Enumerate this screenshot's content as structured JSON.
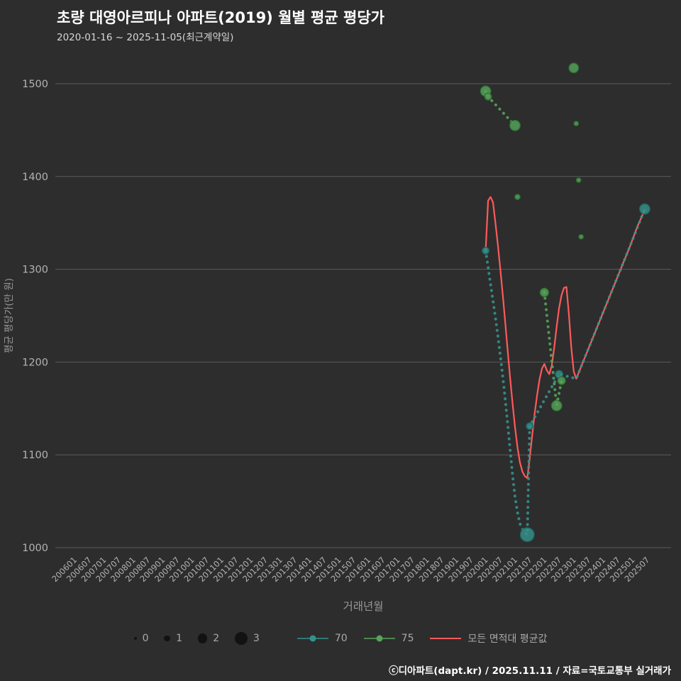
{
  "page": {
    "title": "초량 대영아르피나 아파트(2019) 월별 평균 평당가",
    "subtitle": "2020-01-16 ~ 2025-11-05(최근계약일)",
    "footer": "ⓒ디아파트(dapt.kr) / 2025.11.11 / 자료=국토교통부 실거래가"
  },
  "colors": {
    "background": "#2d2d2d",
    "grid": "#5c5c5c",
    "tick_text": "#b3b3b3",
    "axis_title": "#969696",
    "legend_text": "#a9a9a9",
    "size_dot": "#121212",
    "series70": "#35918c",
    "series75": "#57a35a",
    "avg_line": "#ff5a5a"
  },
  "chart_data": {
    "type": "scatter",
    "title": "초량 대영아르피나 아파트(2019) 월별 평균 평당가",
    "subtitle": "2020-01-16 ~ 2025-11-05(최근계약일)",
    "xlabel": "거래년월",
    "ylabel": "평균 평당가(만 원)",
    "yticks": [
      1000,
      1100,
      1200,
      1300,
      1400,
      1500
    ],
    "ylim": [
      990,
      1545
    ],
    "grid": "horizontal-only",
    "legend_position": "bottom",
    "xticks": [
      "200601",
      "200607",
      "200701",
      "200707",
      "200801",
      "200807",
      "200901",
      "200907",
      "201001",
      "201007",
      "201101",
      "201107",
      "201201",
      "201207",
      "201301",
      "201307",
      "201401",
      "201407",
      "201501",
      "201507",
      "201601",
      "201607",
      "201701",
      "201707",
      "201801",
      "201807",
      "201901",
      "201907",
      "202001",
      "202007",
      "202101",
      "202107",
      "202201",
      "202207",
      "202301",
      "202307",
      "202401",
      "202407",
      "202501",
      "202507"
    ],
    "size_legend": [
      0,
      1,
      2,
      3
    ],
    "series": [
      {
        "name": "70",
        "color": "#35918c",
        "edge": "#1d655f",
        "points": [
          [
            "202001",
            1320,
            1
          ],
          [
            "202106",
            1014,
            3
          ],
          [
            "202107",
            1131,
            1
          ],
          [
            "202207",
            1187,
            1.2
          ],
          [
            "202506",
            1365,
            2
          ]
        ],
        "trails": [
          [
            [
              "202001",
              1320
            ],
            [
              "202002",
              1302
            ],
            [
              "202003",
              1284
            ],
            [
              "202004",
              1266
            ],
            [
              "202005",
              1248
            ],
            [
              "202006",
              1228
            ],
            [
              "202007",
              1207
            ],
            [
              "202008",
              1184
            ],
            [
              "202009",
              1160
            ],
            [
              "202010",
              1134
            ],
            [
              "202011",
              1106
            ],
            [
              "202012",
              1078
            ],
            [
              "202101",
              1055
            ],
            [
              "202102",
              1038
            ],
            [
              "202103",
              1026
            ],
            [
              "202104",
              1020
            ],
            [
              "202105",
              1016
            ],
            [
              "202106",
              1014
            ],
            [
              "202107",
              1131
            ],
            [
              "202207",
              1187
            ],
            [
              "202302",
              1182
            ],
            [
              "202312",
              1247
            ],
            [
              "202412",
              1325
            ],
            [
              "202506",
              1365
            ]
          ]
        ]
      },
      {
        "name": "75",
        "color": "#57a35a",
        "edge": "#2e7033",
        "points": [
          [
            "202001",
            1492,
            2
          ],
          [
            "202002",
            1486,
            1
          ],
          [
            "202101",
            1455,
            2
          ],
          [
            "202102",
            1378,
            0.6
          ],
          [
            "202201",
            1275,
            1.5
          ],
          [
            "202206",
            1153,
            2
          ],
          [
            "202208",
            1180,
            1.3
          ],
          [
            "202301",
            1517,
            1.8
          ],
          [
            "202302",
            1457,
            0.4
          ],
          [
            "202303",
            1396,
            0.4
          ],
          [
            "202304",
            1335,
            0.4
          ]
        ],
        "trails": [
          [
            [
              "202001",
              1492
            ],
            [
              "202002",
              1486
            ],
            [
              "202101",
              1455
            ]
          ],
          [
            [
              "202201",
              1275
            ],
            [
              "202206",
              1153
            ],
            [
              "202208",
              1180
            ]
          ]
        ]
      },
      {
        "name": "모든 면적대 평균값",
        "color": "#ff5a5a",
        "type": "line",
        "points": [
          [
            "202001",
            1320
          ],
          [
            "202002",
            1374
          ],
          [
            "202003",
            1378
          ],
          [
            "202004",
            1372
          ],
          [
            "202005",
            1350
          ],
          [
            "202006",
            1326
          ],
          [
            "202007",
            1300
          ],
          [
            "202008",
            1272
          ],
          [
            "202009",
            1243
          ],
          [
            "202010",
            1213
          ],
          [
            "202011",
            1183
          ],
          [
            "202012",
            1155
          ],
          [
            "202101",
            1130
          ],
          [
            "202102",
            1108
          ],
          [
            "202103",
            1092
          ],
          [
            "202104",
            1082
          ],
          [
            "202105",
            1077
          ],
          [
            "202106",
            1075
          ],
          [
            "202107",
            1096
          ],
          [
            "202108",
            1120
          ],
          [
            "202109",
            1144
          ],
          [
            "202110",
            1164
          ],
          [
            "202111",
            1181
          ],
          [
            "202112",
            1193
          ],
          [
            "202201",
            1198
          ],
          [
            "202202",
            1191
          ],
          [
            "202203",
            1187
          ],
          [
            "202204",
            1196
          ],
          [
            "202205",
            1215
          ],
          [
            "202206",
            1238
          ],
          [
            "202207",
            1258
          ],
          [
            "202208",
            1272
          ],
          [
            "202209",
            1280
          ],
          [
            "202210",
            1281
          ],
          [
            "202211",
            1252
          ],
          [
            "202212",
            1215
          ],
          [
            "202301",
            1190
          ],
          [
            "202302",
            1182
          ],
          [
            "202306",
            1208
          ],
          [
            "202312",
            1247
          ],
          [
            "202406",
            1286
          ],
          [
            "202412",
            1325
          ],
          [
            "202503",
            1346
          ],
          [
            "202506",
            1364
          ]
        ]
      }
    ]
  }
}
